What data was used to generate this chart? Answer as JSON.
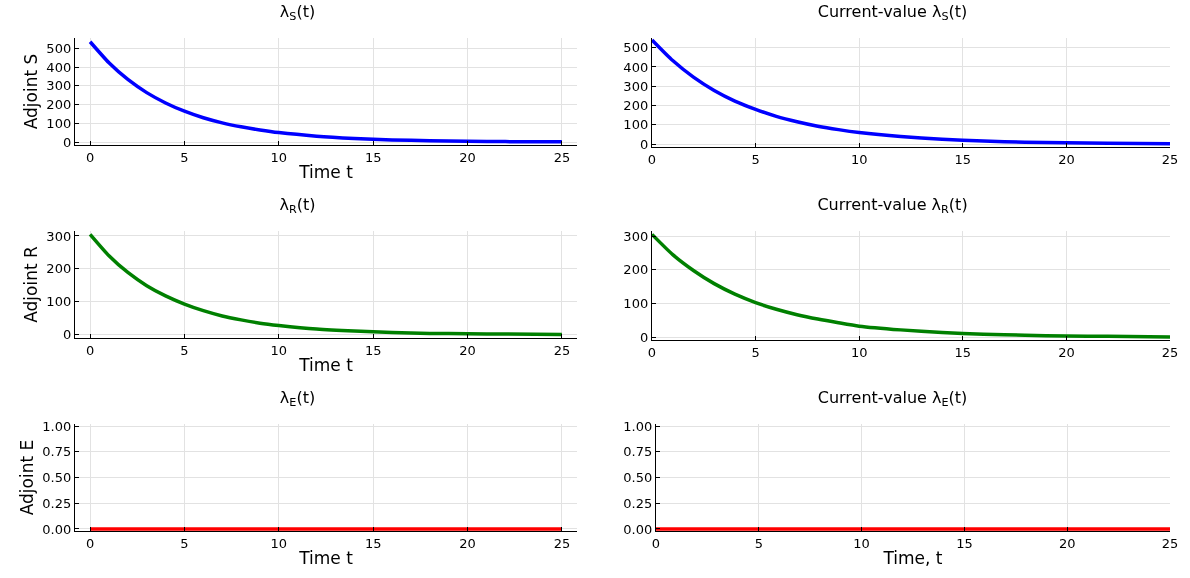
{
  "chart_data": [
    {
      "type": "line",
      "title": "λ$_{S}$(t)",
      "xlabel": "Time t",
      "ylabel": "Adjoint S",
      "x": [
        0,
        1,
        2,
        3,
        4,
        5,
        6,
        7,
        8,
        9,
        10,
        12,
        14,
        16,
        18,
        20,
        22,
        25
      ],
      "series": [
        {
          "color": "#0000ff",
          "values": [
            535,
            423,
            334,
            264,
            209,
            165,
            130,
            103,
            82,
            65,
            51,
            32,
            20,
            12,
            8,
            5,
            3,
            2
          ]
        }
      ],
      "xlim": [
        -0.8,
        25.8
      ],
      "ylim": [
        -15,
        555
      ],
      "xticks": [
        0,
        5,
        10,
        15,
        20,
        25
      ],
      "yticks": [
        0,
        100,
        200,
        300,
        400,
        500
      ],
      "grid": true
    },
    {
      "type": "line",
      "title": "Current-value λ$_{S}$(t)",
      "x": [
        0,
        1,
        2,
        3,
        4,
        5,
        6,
        7,
        8,
        9,
        10,
        12,
        14,
        16,
        18,
        20,
        22,
        25
      ],
      "series": [
        {
          "color": "#0000ff",
          "values": [
            540,
            433,
            347,
            278,
            223,
            180,
            144,
            116,
            93,
            75,
            60,
            39,
            25,
            16,
            10,
            7,
            4,
            2
          ]
        }
      ],
      "xlim": [
        0,
        25
      ],
      "ylim": [
        -15,
        550
      ],
      "xticks": [
        0,
        5,
        10,
        15,
        20,
        25
      ],
      "yticks": [
        0,
        100,
        200,
        300,
        400,
        500
      ],
      "grid": true
    },
    {
      "type": "line",
      "title": "λ$_{R}$(t)",
      "xlabel": "Time t",
      "ylabel": "Adjoint R",
      "x": [
        0,
        1,
        2,
        3,
        4,
        5,
        6,
        7,
        8,
        9,
        10,
        12,
        14,
        16,
        18,
        20,
        22,
        25
      ],
      "series": [
        {
          "color": "#008000",
          "values": [
            305,
            240,
            189,
            149,
            118,
            93,
            73,
            57,
            45,
            35,
            28,
            17,
            11,
            7,
            4,
            3,
            2,
            1
          ]
        }
      ],
      "xlim": [
        -0.8,
        25.8
      ],
      "ylim": [
        -10,
        315
      ],
      "xticks": [
        0,
        5,
        10,
        15,
        20,
        25
      ],
      "yticks": [
        0,
        100,
        200,
        300
      ],
      "grid": true
    },
    {
      "type": "line",
      "title": "Current-value λ$_{R}$(t)",
      "x": [
        0,
        1,
        2,
        3,
        4,
        5,
        6,
        7,
        8,
        9,
        10,
        12,
        14,
        16,
        18,
        20,
        22,
        25
      ],
      "series": [
        {
          "color": "#008000",
          "values": [
            305,
            245,
            198,
            159,
            128,
            103,
            83,
            67,
            54,
            43,
            33,
            22,
            14,
            9,
            6,
            4,
            3,
            1
          ]
        }
      ],
      "xlim": [
        0,
        25
      ],
      "ylim": [
        -8,
        315
      ],
      "xticks": [
        0,
        5,
        10,
        15,
        20,
        25
      ],
      "yticks": [
        0,
        100,
        200,
        300
      ],
      "grid": true
    },
    {
      "type": "line",
      "title": "λ$_{E}$(t)",
      "xlabel": "Time t",
      "ylabel": "Adjoint E",
      "x": [
        0,
        5,
        10,
        15,
        20,
        25
      ],
      "series": [
        {
          "color": "#ff0000",
          "values": [
            0,
            0,
            0,
            0,
            0,
            0
          ]
        }
      ],
      "xlim": [
        -0.8,
        25.8
      ],
      "ylim": [
        -0.02,
        1.02
      ],
      "xticks": [
        0,
        5,
        10,
        15,
        20,
        25
      ],
      "yticks": [
        {
          "value": 0,
          "label": "0.00"
        },
        {
          "value": 0.25,
          "label": "0.25"
        },
        {
          "value": 0.5,
          "label": "0.50"
        },
        {
          "value": 0.75,
          "label": "0.75"
        },
        {
          "value": 1,
          "label": "1.00"
        }
      ],
      "grid": true
    },
    {
      "type": "line",
      "title": "Current-value λ$_{E}$(t)",
      "xlabel": "Time, t",
      "x": [
        0,
        5,
        10,
        15,
        20,
        25
      ],
      "series": [
        {
          "color": "#ff0000",
          "values": [
            0,
            0,
            0,
            0,
            0,
            0
          ]
        }
      ],
      "xlim": [
        0,
        25
      ],
      "ylim": [
        -0.02,
        1.02
      ],
      "xticks": [
        0,
        5,
        10,
        15,
        20,
        25
      ],
      "yticks": [
        {
          "value": 0,
          "label": "0.00"
        },
        {
          "value": 0.25,
          "label": "0.25"
        },
        {
          "value": 0.5,
          "label": "0.50"
        },
        {
          "value": 0.75,
          "label": "0.75"
        },
        {
          "value": 1,
          "label": "1.00"
        }
      ],
      "grid": true
    }
  ]
}
